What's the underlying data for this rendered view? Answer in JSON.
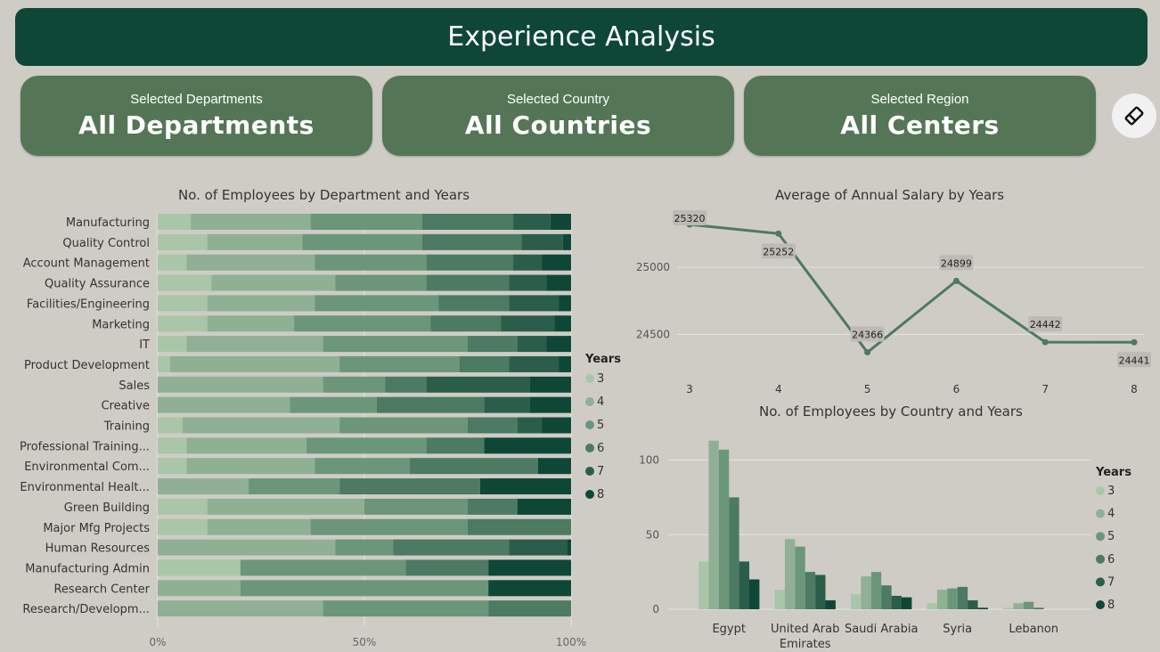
{
  "header": {
    "title": "Experience Analysis"
  },
  "cards": [
    {
      "label": "Selected Departments",
      "value": "All Departments"
    },
    {
      "label": "Selected Country",
      "value": "All Countries"
    },
    {
      "label": "Selected Region",
      "value": "All Centers"
    }
  ],
  "colors": {
    "y3": "#aac6a8",
    "y4": "#8fb094",
    "y5": "#6c9679",
    "y6": "#4c7a62",
    "y7": "#2b5e4a",
    "y8": "#0f4737",
    "line": "#4c7a62",
    "header": "#0f4737",
    "card": "#547656"
  },
  "clear_icon": "eraser-icon",
  "chart_data": [
    {
      "type": "bar",
      "orientation": "horizontal-stacked-100",
      "title": "No. of Employees by Department and Years",
      "legend_title": "Years",
      "legend": [
        "3",
        "4",
        "5",
        "6",
        "7",
        "8"
      ],
      "categories": [
        "Manufacturing",
        "Quality Control",
        "Account Management",
        "Quality Assurance",
        "Facilities/Engineering",
        "Marketing",
        "IT",
        "Product Development",
        "Sales",
        "Creative",
        "Training",
        "Professional Training...",
        "Environmental Com...",
        "Environmental Healt...",
        "Green Building",
        "Major Mfg Projects",
        "Human Resources",
        "Manufacturing Admin",
        "Research Center",
        "Research/Developm..."
      ],
      "series": [
        {
          "name": "3",
          "values": [
            8,
            12,
            7,
            13,
            12,
            12,
            7,
            3,
            0,
            0,
            6,
            7,
            7,
            0,
            12,
            12,
            0,
            20,
            0,
            0
          ]
        },
        {
          "name": "4",
          "values": [
            29,
            23,
            31,
            30,
            26,
            21,
            33,
            41,
            40,
            32,
            38,
            29,
            31,
            22,
            38,
            25,
            43,
            0,
            20,
            40
          ]
        },
        {
          "name": "5",
          "values": [
            27,
            29,
            27,
            22,
            30,
            33,
            35,
            29,
            15,
            21,
            31,
            29,
            23,
            22,
            25,
            38,
            14,
            40,
            60,
            40
          ]
        },
        {
          "name": "6",
          "values": [
            22,
            24,
            21,
            20,
            17,
            17,
            12,
            12,
            10,
            26,
            12,
            14,
            31,
            34,
            12,
            25,
            28,
            20,
            0,
            20
          ]
        },
        {
          "name": "7",
          "values": [
            9,
            10,
            7,
            9,
            12,
            13,
            7,
            12,
            25,
            11,
            6,
            0,
            0,
            0,
            0,
            0,
            14,
            0,
            0,
            0
          ]
        },
        {
          "name": "8",
          "values": [
            5,
            2,
            7,
            6,
            3,
            4,
            6,
            3,
            10,
            10,
            7,
            21,
            8,
            22,
            13,
            0,
            1,
            20,
            20,
            0
          ]
        }
      ],
      "x_ticks": [
        "0%",
        "50%",
        "100%"
      ],
      "xlim": [
        0,
        100
      ]
    },
    {
      "type": "line",
      "title": "Average of Annual Salary by Years",
      "x": [
        3,
        4,
        5,
        6,
        7,
        8
      ],
      "values": [
        25320,
        25252,
        24366,
        24899,
        24442,
        24441
      ],
      "data_labels": [
        "25320",
        "25252",
        "24366",
        "24899",
        "24442",
        "24441"
      ],
      "y_ticks": [
        "25000",
        "24500"
      ],
      "ylim": [
        24270,
        25380
      ]
    },
    {
      "type": "bar",
      "orientation": "vertical-grouped",
      "title": "No. of Employees by Country and Years",
      "legend_title": "Years",
      "legend": [
        "3",
        "4",
        "5",
        "6",
        "7",
        "8"
      ],
      "categories": [
        "Egypt",
        "United Arab Emirates",
        "Saudi Arabia",
        "Syria",
        "Lebanon"
      ],
      "series": [
        {
          "name": "3",
          "values": [
            32,
            13,
            10,
            4,
            1
          ]
        },
        {
          "name": "4",
          "values": [
            113,
            47,
            22,
            13,
            4
          ]
        },
        {
          "name": "5",
          "values": [
            107,
            42,
            25,
            14,
            5
          ]
        },
        {
          "name": "6",
          "values": [
            75,
            25,
            16,
            15,
            1
          ]
        },
        {
          "name": "7",
          "values": [
            32,
            23,
            9,
            6,
            0
          ]
        },
        {
          "name": "8",
          "values": [
            20,
            6,
            8,
            1,
            0
          ]
        }
      ],
      "y_ticks": [
        "0",
        "50",
        "100"
      ],
      "ylim": [
        0,
        120
      ]
    }
  ]
}
